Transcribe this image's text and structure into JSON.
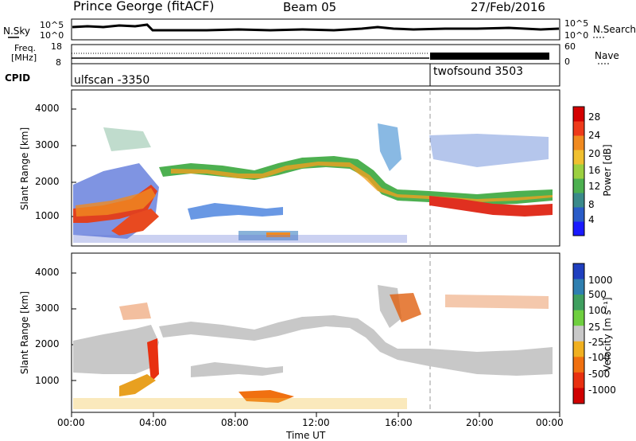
{
  "header": {
    "station": "Prince George (fitACF)",
    "beam": "Beam 05",
    "date": "27/Feb/2016"
  },
  "noise_panel": {
    "left_label": "N.Sky",
    "right_label": "N.Search",
    "left_ticks": [
      "10^5",
      "10^0"
    ],
    "right_ticks": [
      "10^5",
      "10^0"
    ]
  },
  "freq_panel": {
    "label_line1": "Freq.",
    "label_line2": "[MHz]",
    "left_ticks": [
      "18",
      "8"
    ],
    "right_label": "Nave",
    "right_ticks": [
      "60",
      "0"
    ]
  },
  "cpid_panel": {
    "label": "CPID",
    "programs": [
      {
        "name": "ulfscan -3350",
        "start": "00:00"
      },
      {
        "name": "twofsound 3503",
        "start": "18:00"
      }
    ]
  },
  "chart_data": [
    {
      "type": "heatmap",
      "ylabel": "Slant Range [km]",
      "y_ticks": [
        "1000",
        "2000",
        "3000",
        "4000"
      ],
      "ylim": [
        200,
        4500
      ],
      "colorbar": {
        "label": "Power [dB]",
        "ticks": [
          "4",
          "8",
          "12",
          "16",
          "20",
          "24",
          "28"
        ],
        "colors": [
          "#1a1aff",
          "#2a5cc8",
          "#3a8a8a",
          "#4db050",
          "#9cd040",
          "#f0c030",
          "#f08a20",
          "#ee3a1a",
          "#d40000"
        ]
      }
    },
    {
      "type": "heatmap",
      "ylabel": "Slant Range [km]",
      "y_ticks": [
        "1000",
        "2000",
        "3000",
        "4000"
      ],
      "ylim": [
        200,
        4500
      ],
      "xlabel": "Time UT",
      "x_ticks": [
        "00:00",
        "04:00",
        "08:00",
        "12:00",
        "16:00",
        "20:00",
        "00:00"
      ],
      "colorbar": {
        "label": "Velocity [m s⁻¹]",
        "ticks": [
          "1000",
          "500",
          "100",
          "25",
          "-25",
          "-100",
          "-500",
          "-1000"
        ],
        "colors": [
          "#1f3fbf",
          "#2f7fb0",
          "#3f9f5f",
          "#6fcf3f",
          "#c8c8c8",
          "#f0b020",
          "#f07010",
          "#e83010",
          "#d00000"
        ]
      }
    }
  ]
}
